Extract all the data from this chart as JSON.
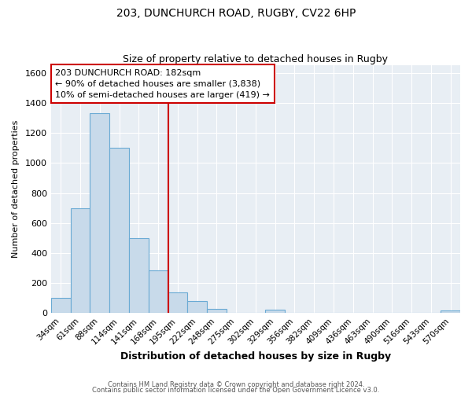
{
  "title": "203, DUNCHURCH ROAD, RUGBY, CV22 6HP",
  "subtitle": "Size of property relative to detached houses in Rugby",
  "xlabel": "Distribution of detached houses by size in Rugby",
  "ylabel": "Number of detached properties",
  "footnote1": "Contains HM Land Registry data © Crown copyright and database right 2024.",
  "footnote2": "Contains public sector information licensed under the Open Government Licence v3.0.",
  "bin_labels": [
    "34sqm",
    "61sqm",
    "88sqm",
    "114sqm",
    "141sqm",
    "168sqm",
    "195sqm",
    "222sqm",
    "248sqm",
    "275sqm",
    "302sqm",
    "329sqm",
    "356sqm",
    "382sqm",
    "409sqm",
    "436sqm",
    "463sqm",
    "490sqm",
    "516sqm",
    "543sqm",
    "570sqm"
  ],
  "bar_heights": [
    100,
    700,
    1330,
    1100,
    500,
    285,
    140,
    80,
    30,
    0,
    0,
    25,
    0,
    0,
    0,
    0,
    0,
    0,
    0,
    0,
    20
  ],
  "bar_color": "#c8daea",
  "bar_edge_color": "#6aaad4",
  "vline_x": 5.5,
  "vline_color": "#cc0000",
  "annotation_title": "203 DUNCHURCH ROAD: 182sqm",
  "annotation_line1": "← 90% of detached houses are smaller (3,838)",
  "annotation_line2": "10% of semi-detached houses are larger (419) →",
  "annotation_box_color": "#ffffff",
  "annotation_box_edge": "#cc0000",
  "ylim": [
    0,
    1650
  ],
  "yticks": [
    0,
    200,
    400,
    600,
    800,
    1000,
    1200,
    1400,
    1600
  ],
  "plot_bg": "#e8eef4",
  "fig_bg": "#ffffff",
  "grid_color": "#ffffff",
  "title_fontsize": 10,
  "subtitle_fontsize": 9
}
